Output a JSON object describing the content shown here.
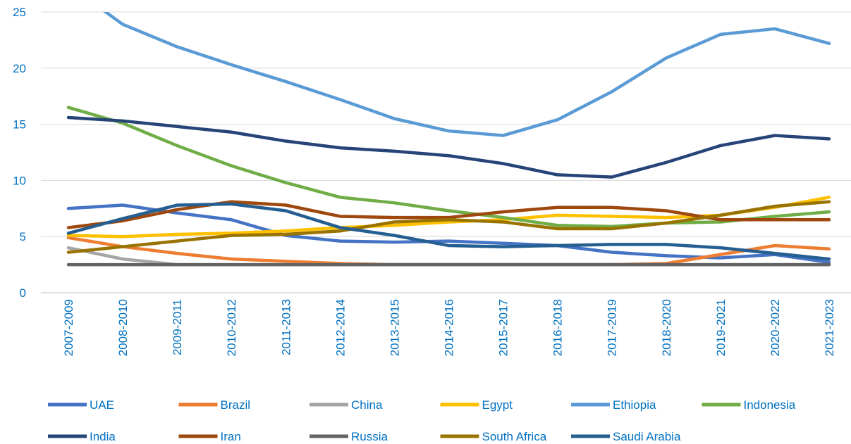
{
  "chart_data": {
    "type": "line",
    "categories": [
      "2007-2009",
      "2008-2010",
      "2009-2011",
      "2010-2012",
      "2011-2013",
      "2012-2014",
      "2013-2015",
      "2014-2016",
      "2015-2017",
      "2016-2018",
      "2017-2019",
      "2018-2020",
      "2019-2021",
      "2020-2022",
      "2021-2023"
    ],
    "series": [
      {
        "name": "UAE",
        "color": "#4472c4",
        "values": [
          7.5,
          7.8,
          7.1,
          6.5,
          5.1,
          4.6,
          4.5,
          4.6,
          4.4,
          4.2,
          3.6,
          3.3,
          3.1,
          3.4,
          2.7
        ]
      },
      {
        "name": "Brazil",
        "color": "#ed7d31",
        "values": [
          4.9,
          4.1,
          3.5,
          3.0,
          2.8,
          2.6,
          2.5,
          2.5,
          2.5,
          2.5,
          2.5,
          2.6,
          3.4,
          4.2,
          3.9
        ]
      },
      {
        "name": "China",
        "color": "#a5a5a5",
        "values": [
          4.0,
          3.0,
          2.5,
          2.5,
          2.5,
          2.5,
          2.5,
          2.5,
          2.5,
          2.5,
          2.5,
          2.5,
          2.5,
          2.5,
          2.5
        ]
      },
      {
        "name": "Egypt",
        "color": "#ffc000",
        "values": [
          5.1,
          5.0,
          5.2,
          5.3,
          5.5,
          5.8,
          6.0,
          6.3,
          6.5,
          6.9,
          6.8,
          6.7,
          6.9,
          7.6,
          8.5
        ]
      },
      {
        "name": "Ethiopia",
        "color": "#5b9bd5",
        "values": [
          27.4,
          23.9,
          21.9,
          20.3,
          18.8,
          17.2,
          15.5,
          14.4,
          14.0,
          15.4,
          17.9,
          20.9,
          23.0,
          23.5,
          22.2
        ]
      },
      {
        "name": "Indonesia",
        "color": "#70ad47",
        "values": [
          16.5,
          15.1,
          13.1,
          11.3,
          9.8,
          8.5,
          8.0,
          7.3,
          6.7,
          6.0,
          5.9,
          6.2,
          6.3,
          6.8,
          7.2
        ]
      },
      {
        "name": "India",
        "color": "#264478",
        "values": [
          15.6,
          15.3,
          14.8,
          14.3,
          13.5,
          12.9,
          12.6,
          12.2,
          11.5,
          10.5,
          10.3,
          11.6,
          13.1,
          14.0,
          13.7
        ]
      },
      {
        "name": "Iran",
        "color": "#9e480e",
        "values": [
          5.8,
          6.4,
          7.4,
          8.1,
          7.8,
          6.8,
          6.7,
          6.7,
          7.2,
          7.6,
          7.6,
          7.3,
          6.5,
          6.5,
          6.5
        ]
      },
      {
        "name": "Russia",
        "color": "#636363",
        "values": [
          2.5,
          2.5,
          2.5,
          2.5,
          2.5,
          2.5,
          2.5,
          2.5,
          2.5,
          2.5,
          2.5,
          2.5,
          2.5,
          2.5,
          2.5
        ]
      },
      {
        "name": "South Africa",
        "color": "#997300",
        "values": [
          3.6,
          4.1,
          4.6,
          5.1,
          5.2,
          5.5,
          6.3,
          6.5,
          6.3,
          5.7,
          5.7,
          6.2,
          6.9,
          7.7,
          8.1
        ]
      },
      {
        "name": "Saudi Arabia",
        "color": "#255e91",
        "values": [
          5.3,
          6.6,
          7.8,
          7.9,
          7.3,
          5.8,
          5.1,
          4.2,
          4.1,
          4.2,
          4.3,
          4.3,
          4.0,
          3.5,
          3.0
        ]
      }
    ],
    "ylim": [
      0,
      25
    ],
    "yticks": [
      0,
      5,
      10,
      15,
      20,
      25
    ],
    "grid": true,
    "legend": "bottom"
  }
}
